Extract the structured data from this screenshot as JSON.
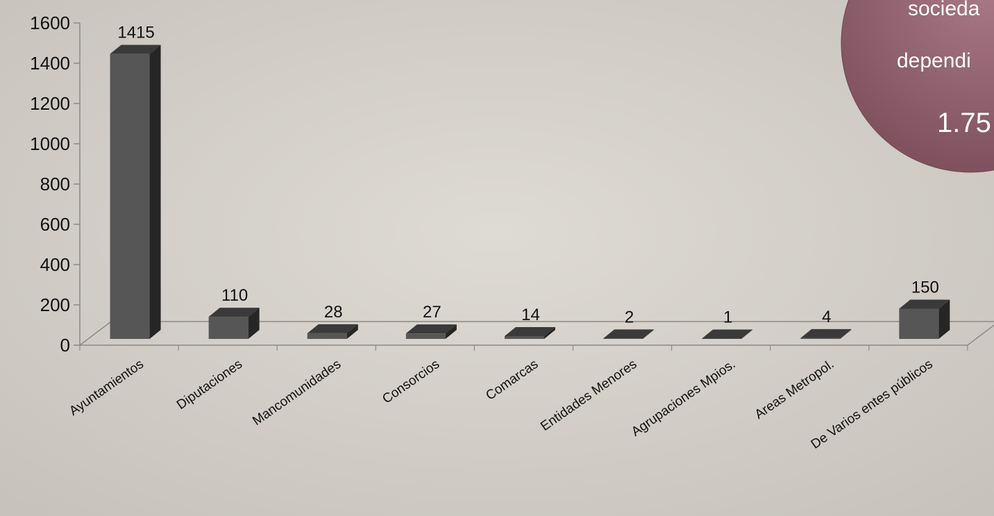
{
  "chart_data": {
    "type": "bar",
    "categories": [
      "Ayuntamientos",
      "Diputaciones",
      "Mancomunidades",
      "Consorcios",
      "Comarcas",
      "Entidades Menores",
      "Agrupaciones Mpios.",
      "Areas Metropol.",
      "De Varios entes públicos"
    ],
    "values": [
      1415,
      110,
      28,
      27,
      14,
      2,
      1,
      4,
      150
    ],
    "data_labels": [
      "1415",
      "110",
      "28",
      "27",
      "14",
      "2",
      "1",
      "4",
      "150"
    ],
    "y_ticks": [
      "0",
      "200",
      "400",
      "600",
      "800",
      "1000",
      "1200",
      "1400",
      "1600"
    ],
    "ylim": [
      0,
      1600
    ],
    "title": "",
    "xlabel": "",
    "ylabel": "",
    "grid": false,
    "legend": "none",
    "style": "3d-column"
  },
  "callout": {
    "line1": "socieda",
    "line2": "dependi",
    "value": "1.75"
  },
  "colors": {
    "bar_front": "#565656",
    "bar_top": "#3a3a3a",
    "bar_side": "#262626",
    "axis": "#8a8a8a",
    "callout_fill": "#8e5e6b",
    "callout_edge": "#6e4552",
    "background": "#cfcbc5"
  }
}
